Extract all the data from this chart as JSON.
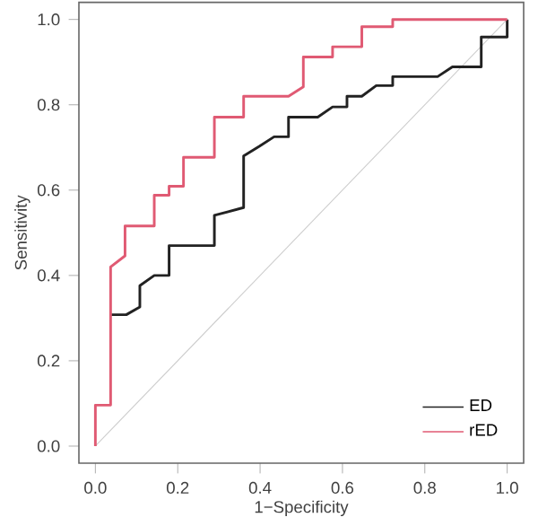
{
  "chart_data": {
    "type": "line",
    "xlabel": "1−Specificity",
    "ylabel": "Sensitivity",
    "xlim": [
      -0.04,
      1.04
    ],
    "ylim": [
      -0.04,
      1.04
    ],
    "xticks": [
      {
        "value": 0,
        "label": "0.0"
      },
      {
        "value": 0.2,
        "label": "0.2"
      },
      {
        "value": 0.4,
        "label": "0.4"
      },
      {
        "value": 0.6,
        "label": "0.6"
      },
      {
        "value": 0.8,
        "label": "0.8"
      },
      {
        "value": 1,
        "label": "1.0"
      }
    ],
    "yticks": [
      {
        "value": 0,
        "label": "0.0"
      },
      {
        "value": 0.2,
        "label": "0.2"
      },
      {
        "value": 0.4,
        "label": "0.4"
      },
      {
        "value": 0.6,
        "label": "0.6"
      },
      {
        "value": 0.8,
        "label": "0.8"
      },
      {
        "value": 1,
        "label": "1.0"
      }
    ],
    "grid": false,
    "legend": "bottom right",
    "marker": "none",
    "line_style": "solid",
    "series": [
      {
        "color": "#cccccc",
        "x": [
          0,
          1
        ],
        "values": [
          0,
          1
        ]
      },
      {
        "name": "ED",
        "color": "#222222",
        "x": [
          0.037,
          0.075,
          0.108,
          0.108,
          0.143,
          0.179,
          0.179,
          0.289,
          0.289,
          0.36,
          0.36,
          0.399,
          0.434,
          0.469,
          0.469,
          0.54,
          0.576,
          0.611,
          0.611,
          0.647,
          0.682,
          0.722,
          0.722,
          0.831,
          0.867,
          0.937,
          0.937,
          1.0,
          1.0
        ],
        "values": [
          0.308,
          0.308,
          0.326,
          0.376,
          0.4,
          0.4,
          0.47,
          0.47,
          0.541,
          0.559,
          0.68,
          0.703,
          0.725,
          0.725,
          0.771,
          0.771,
          0.795,
          0.795,
          0.82,
          0.82,
          0.845,
          0.845,
          0.866,
          0.866,
          0.889,
          0.889,
          0.959,
          0.959,
          1.0
        ]
      },
      {
        "name": "rED",
        "color": "#e05a73",
        "x": [
          0,
          0,
          0.037,
          0.037,
          0.072,
          0.072,
          0.143,
          0.143,
          0.179,
          0.179,
          0.214,
          0.214,
          0.289,
          0.289,
          0.36,
          0.36,
          0.469,
          0.505,
          0.505,
          0.576,
          0.576,
          0.647,
          0.647,
          0.722,
          0.722,
          1.0
        ],
        "values": [
          0,
          0.096,
          0.096,
          0.42,
          0.446,
          0.516,
          0.516,
          0.588,
          0.588,
          0.609,
          0.609,
          0.677,
          0.677,
          0.771,
          0.771,
          0.82,
          0.82,
          0.842,
          0.912,
          0.912,
          0.936,
          0.936,
          0.983,
          0.983,
          1.0,
          1.0
        ]
      }
    ]
  }
}
